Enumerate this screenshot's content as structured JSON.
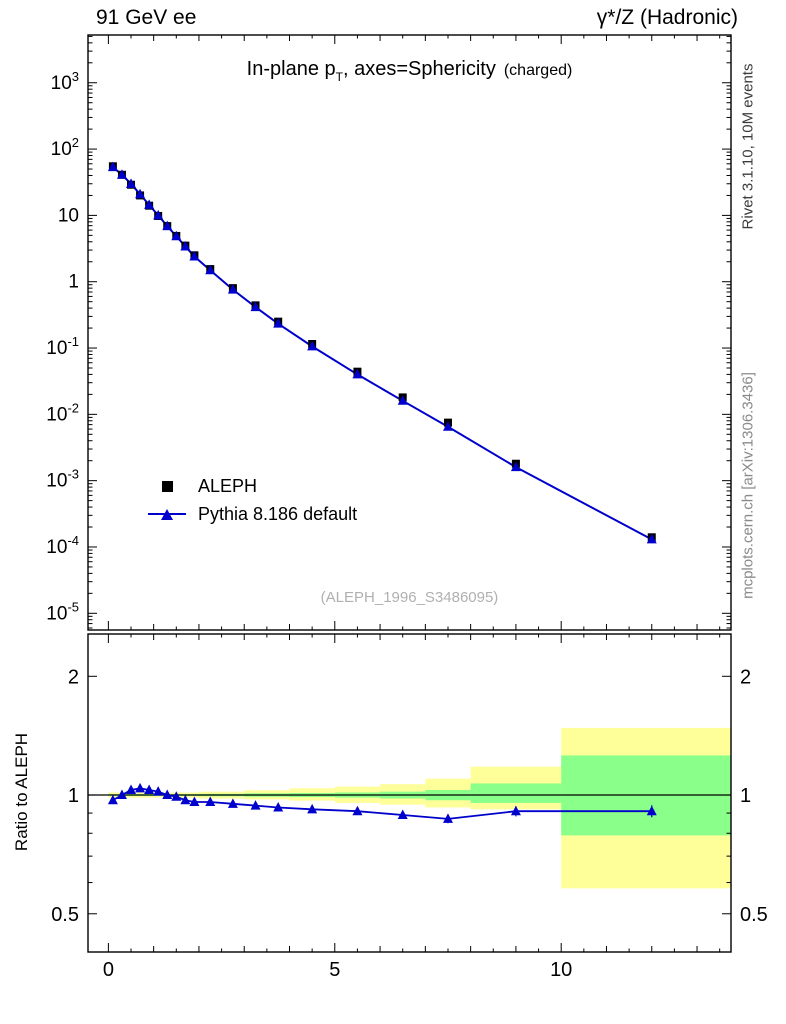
{
  "header": {
    "left": "91 GeV ee",
    "right": "γ*/Z (Hadronic)"
  },
  "sidebar_right": {
    "top": "Rivet 3.1.10, 10M events",
    "bottom": "mcplots.cern.ch [arXiv:1306.3436]"
  },
  "title": {
    "prefix": "In-plane p",
    "subscript": "T",
    "suffix": ", axes=Sphericity",
    "note": "(charged)"
  },
  "watermark": "(ALEPH_1996_S3486095)",
  "ratio_ylabel": "Ratio to ALEPH",
  "legend": [
    {
      "label": "ALEPH",
      "marker": "black-square"
    },
    {
      "label": "Pythia 8.186 default",
      "marker": "blue-triangle-line"
    }
  ],
  "colors": {
    "data": "#000000",
    "mc": "#0000cc",
    "band_outer": "#ffff99",
    "band_inner": "#8aff8a",
    "watermark": "#b0b0b0"
  },
  "chart_data": {
    "type": "line",
    "description": "Data/MC comparison: log-scale spectrum (top panel) and MC/data ratio with uncertainty bands (bottom panel)",
    "x": [
      0.1,
      0.3,
      0.5,
      0.7,
      0.9,
      1.1,
      1.3,
      1.5,
      1.7,
      1.9,
      2.25,
      2.75,
      3.25,
      3.75,
      4.5,
      5.5,
      6.5,
      7.5,
      9.0,
      12.0
    ],
    "series": [
      {
        "name": "ALEPH",
        "values": [
          55,
          41,
          29,
          20,
          14,
          9.8,
          6.9,
          4.9,
          3.5,
          2.5,
          1.55,
          0.8,
          0.44,
          0.25,
          0.115,
          0.044,
          0.018,
          0.0075,
          0.0018,
          0.00014
        ]
      },
      {
        "name": "Pythia 8.186 default",
        "values": [
          53.4,
          41,
          29.9,
          20.8,
          14.4,
          10.0,
          6.9,
          4.85,
          3.4,
          2.4,
          1.49,
          0.76,
          0.414,
          0.233,
          0.106,
          0.04,
          0.016,
          0.0065,
          0.0016,
          0.00013
        ]
      }
    ],
    "ratio": {
      "name": "Pythia/ALEPH",
      "values": [
        0.97,
        1.0,
        1.03,
        1.04,
        1.03,
        1.02,
        1.0,
        0.99,
        0.97,
        0.96,
        0.96,
        0.95,
        0.94,
        0.93,
        0.92,
        0.91,
        0.89,
        0.87,
        0.91,
        0.91
      ],
      "errors": [
        0.015,
        0.012,
        0.012,
        0.012,
        0.012,
        0.012,
        0.012,
        0.012,
        0.012,
        0.012,
        0.013,
        0.013,
        0.015,
        0.015,
        0.015,
        0.018,
        0.02,
        0.025,
        0.03,
        0.035
      ]
    },
    "bands": {
      "outer_color": "#ffff99",
      "inner_color": "#8aff8a",
      "segments": [
        {
          "x0": 0.0,
          "x1": 2.0,
          "outer": [
            0.985,
            1.015
          ],
          "inner": [
            0.995,
            1.005
          ]
        },
        {
          "x0": 2.0,
          "x1": 3.0,
          "outer": [
            0.98,
            1.02
          ],
          "inner": [
            0.993,
            1.007
          ]
        },
        {
          "x0": 3.0,
          "x1": 4.0,
          "outer": [
            0.975,
            1.028
          ],
          "inner": [
            0.99,
            1.01
          ]
        },
        {
          "x0": 4.0,
          "x1": 5.0,
          "outer": [
            0.968,
            1.04
          ],
          "inner": [
            0.988,
            1.012
          ]
        },
        {
          "x0": 5.0,
          "x1": 6.0,
          "outer": [
            0.955,
            1.05
          ],
          "inner": [
            0.985,
            1.015
          ]
        },
        {
          "x0": 6.0,
          "x1": 7.0,
          "outer": [
            0.945,
            1.065
          ],
          "inner": [
            0.98,
            1.02
          ]
        },
        {
          "x0": 7.0,
          "x1": 8.0,
          "outer": [
            0.93,
            1.1
          ],
          "inner": [
            0.97,
            1.03
          ]
        },
        {
          "x0": 8.0,
          "x1": 10.0,
          "outer": [
            0.92,
            1.18
          ],
          "inner": [
            0.955,
            1.07
          ]
        },
        {
          "x0": 10.0,
          "x1": 13.75,
          "outer": [
            0.58,
            1.48
          ],
          "inner": [
            0.79,
            1.26
          ]
        }
      ]
    },
    "x_axis": {
      "min": -0.45,
      "max": 13.75,
      "major_ticks": [
        0,
        5,
        10
      ],
      "labels": [
        "0",
        "5",
        "10"
      ]
    },
    "y_axis_main": {
      "log": true,
      "min": 5.6e-06,
      "max": 5250,
      "tick_exps": [
        3,
        2,
        1,
        0,
        -1,
        -2,
        -3,
        -4,
        -5
      ],
      "tick_labels": [
        "10^3",
        "10^2",
        "10",
        "1",
        "10^-1",
        "10^-2",
        "10^-3",
        "10^-4",
        "10^-5"
      ]
    },
    "y_axis_ratio": {
      "log": true,
      "min": 0.4,
      "max": 2.56,
      "major_ticks": [
        2,
        1,
        0.5
      ],
      "labels": [
        "2",
        "1",
        "0.5"
      ],
      "minor_ticks": [
        0.6,
        0.7,
        0.8,
        0.9
      ]
    },
    "legend_position": "middle-left of top panel",
    "grid": false
  }
}
